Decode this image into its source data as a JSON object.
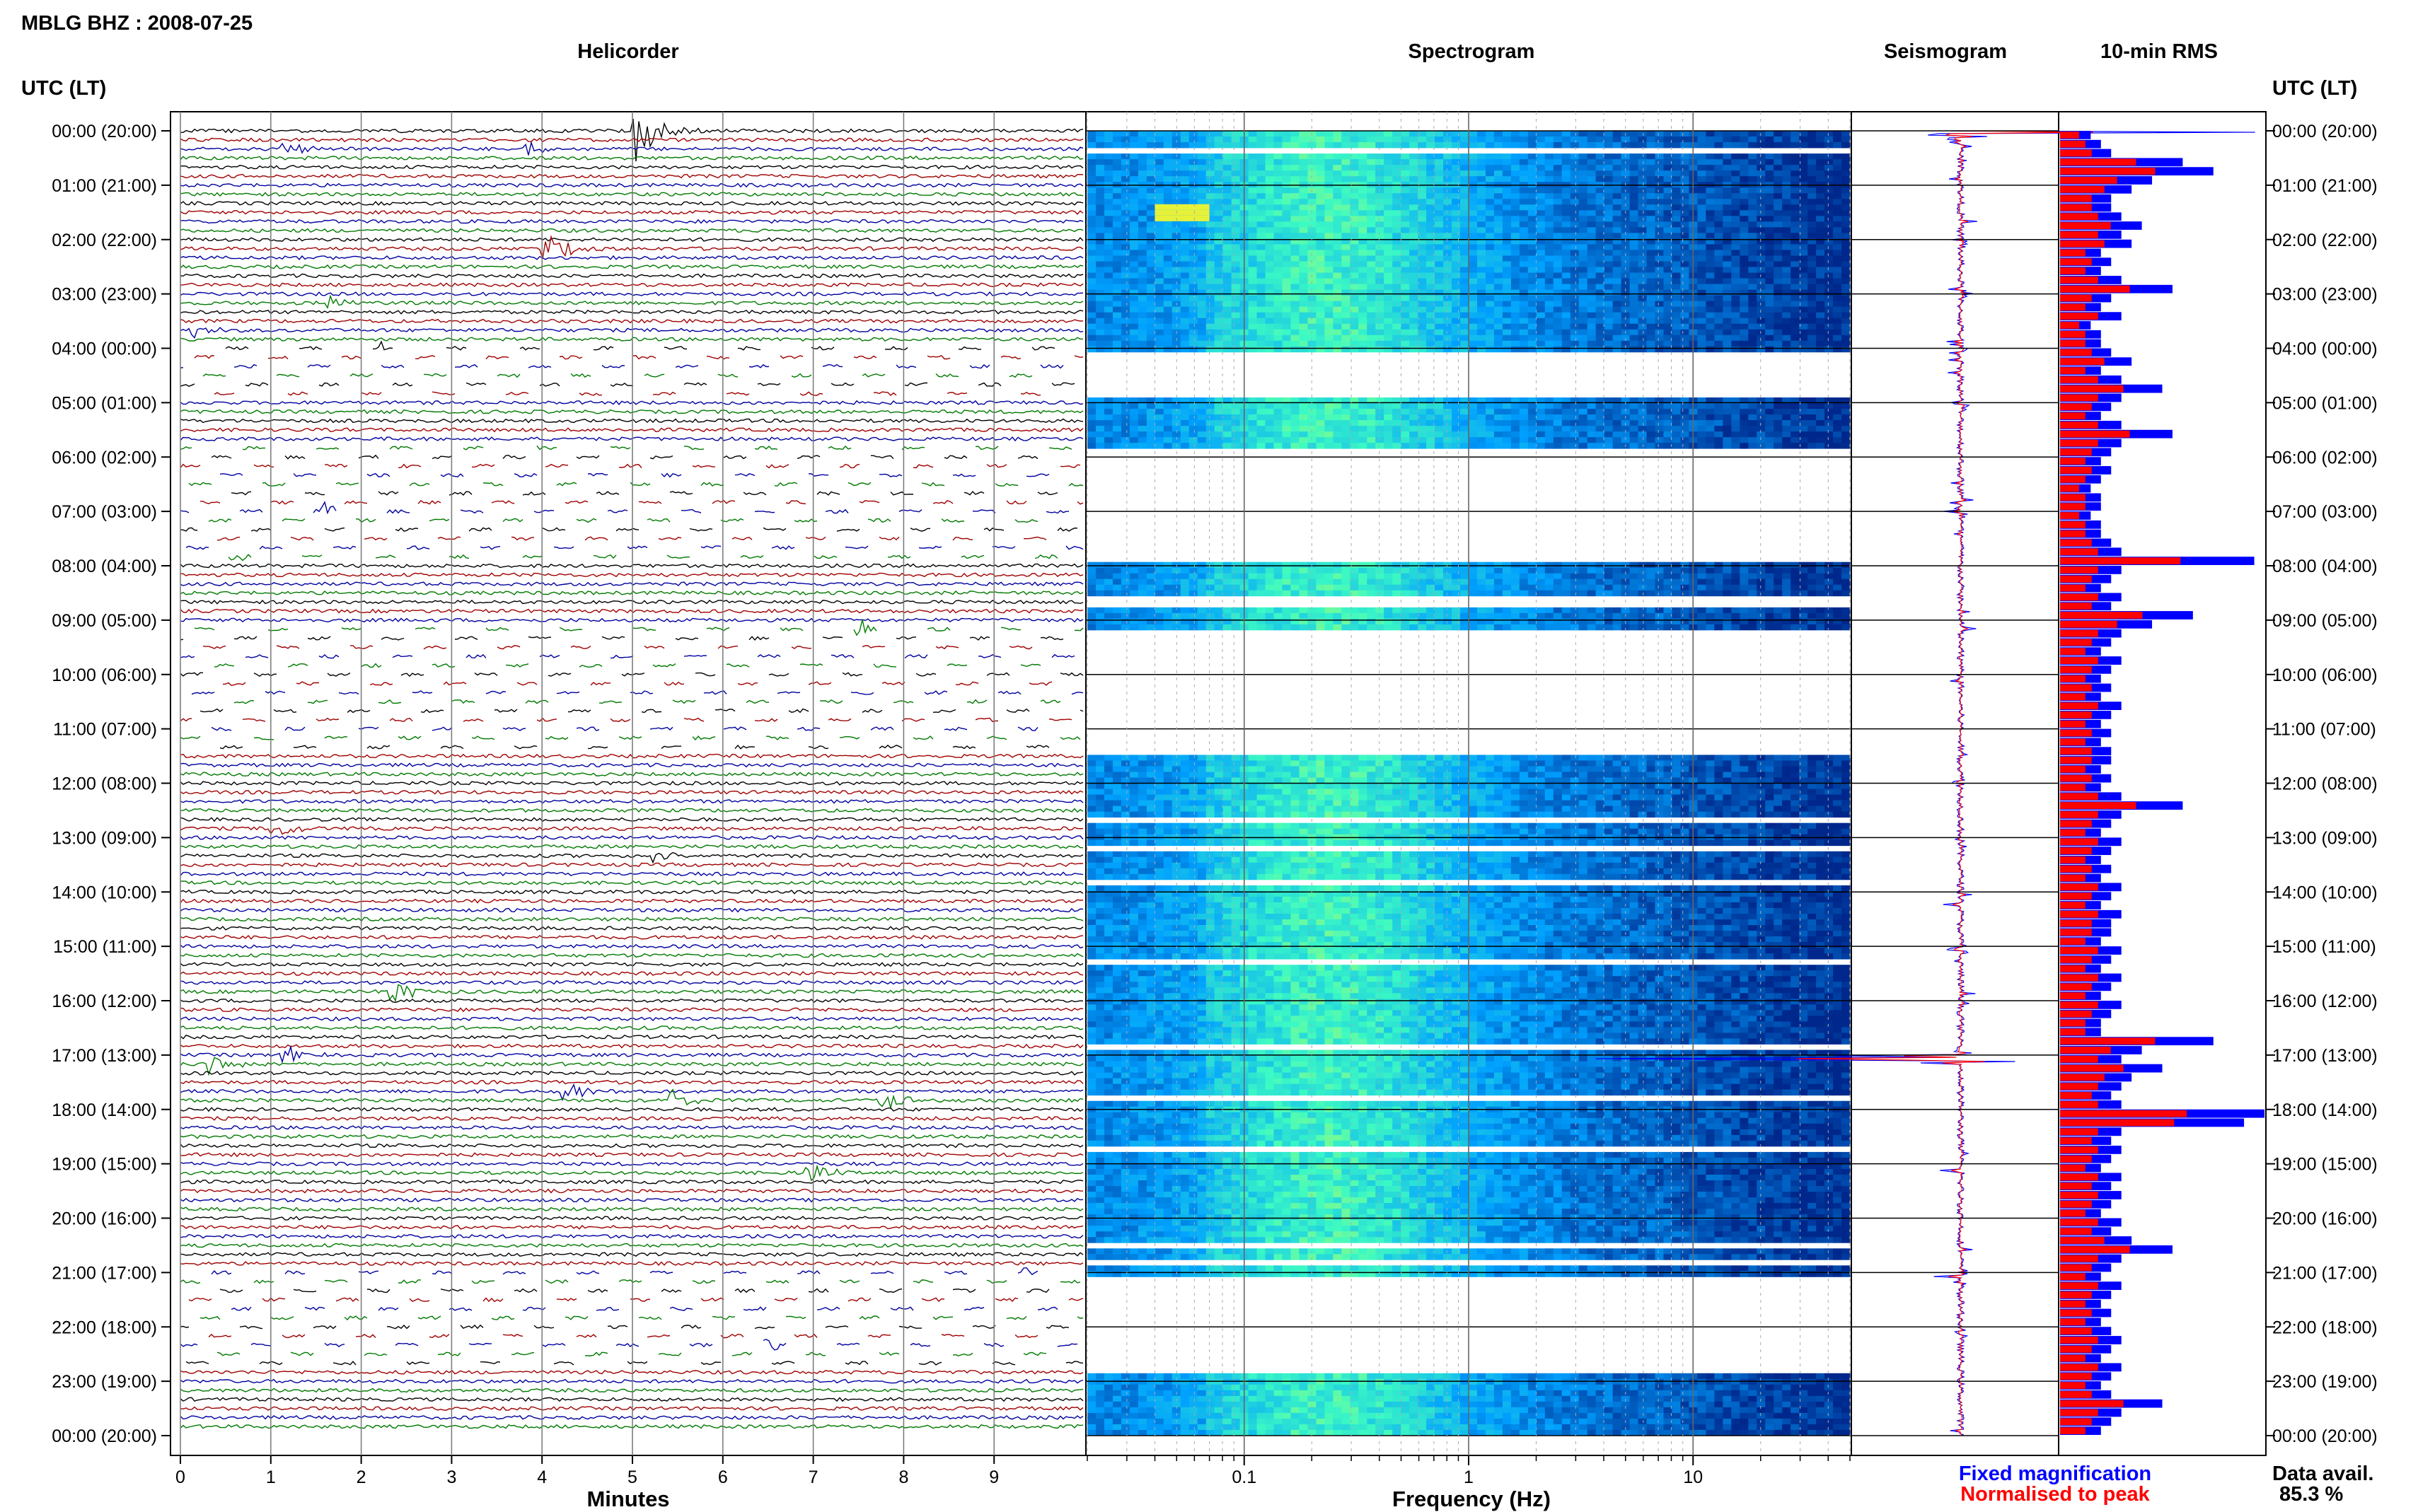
{
  "header": {
    "station": "MBLG BHZ : 2008-07-25"
  },
  "time_axis": {
    "header_label": "UTC (LT)",
    "labels": [
      "00:00 (20:00)",
      "01:00 (21:00)",
      "02:00 (22:00)",
      "03:00 (23:00)",
      "04:00 (00:00)",
      "05:00 (01:00)",
      "06:00 (02:00)",
      "07:00 (03:00)",
      "08:00 (04:00)",
      "09:00 (05:00)",
      "10:00 (06:00)",
      "11:00 (07:00)",
      "12:00 (08:00)",
      "13:00 (09:00)",
      "14:00 (10:00)",
      "15:00 (11:00)",
      "16:00 (12:00)",
      "17:00 (13:00)",
      "18:00 (14:00)",
      "19:00 (15:00)",
      "20:00 (16:00)",
      "21:00 (17:00)",
      "22:00 (18:00)",
      "23:00 (19:00)",
      "00:00 (20:00)"
    ]
  },
  "panels": {
    "helicorder": {
      "title": "Helicorder",
      "xlabel": "Minutes",
      "ticks": [
        "0",
        "1",
        "2",
        "3",
        "4",
        "5",
        "6",
        "7",
        "8",
        "9"
      ]
    },
    "spectrogram": {
      "title": "Spectrogram",
      "xlabel": "Frequency (Hz)",
      "ticks": [
        "0.1",
        "1",
        "10"
      ],
      "scale": "log"
    },
    "seismogram": {
      "title": "Seismogram"
    },
    "rms": {
      "title": "10-min RMS"
    }
  },
  "legend": {
    "fixed": {
      "label": "Fixed magnification",
      "color": "#0000ff"
    },
    "normalised": {
      "label": "Normalised to peak",
      "color": "#ff0000"
    }
  },
  "availability": {
    "label": "Data avail.",
    "value": "85.3 %"
  },
  "colors": {
    "black": "#000000",
    "red": "#a00000",
    "blue": "#0000a0",
    "green": "#007a00"
  },
  "chart_data": {
    "type": "heatmap",
    "description_values": {
      "helicorder_minutes_per_line": 10,
      "lines_per_hour": 6,
      "hours": 24
    },
    "events": [
      {
        "hour": 0,
        "minute": 5.0,
        "amp": 1.0
      },
      {
        "hour": 0,
        "minute": 1.1,
        "amp": 0.25
      },
      {
        "hour": 0,
        "minute": 3.8,
        "amp": 0.3
      },
      {
        "hour": 2,
        "minute": 4.0,
        "amp": 0.6
      },
      {
        "hour": 3,
        "minute": 0.1,
        "amp": 0.25
      },
      {
        "hour": 3,
        "minute": 1.6,
        "amp": 0.25
      },
      {
        "hour": 4,
        "minute": 2.2,
        "amp": 0.3
      },
      {
        "hour": 5,
        "minute": 3.5,
        "amp": 0.55
      },
      {
        "hour": 7,
        "minute": 0.3,
        "amp": 0.4
      },
      {
        "hour": 7,
        "minute": 1.5,
        "amp": 0.45
      },
      {
        "hour": 9,
        "minute": 7.3,
        "amp": 0.9
      },
      {
        "hour": 12,
        "minute": 1.0,
        "amp": 0.35
      },
      {
        "hour": 13,
        "minute": 5.2,
        "amp": 0.2
      },
      {
        "hour": 15,
        "minute": 2.3,
        "amp": 0.45
      },
      {
        "hour": 17,
        "minute": 0.3,
        "amp": 0.3
      },
      {
        "hour": 17,
        "minute": 1.1,
        "amp": 0.45
      },
      {
        "hour": 17,
        "minute": 4.2,
        "amp": 0.4
      },
      {
        "hour": 17,
        "minute": 5.4,
        "amp": 0.35
      },
      {
        "hour": 17,
        "minute": 7.7,
        "amp": 0.45
      },
      {
        "hour": 19,
        "minute": 6.9,
        "amp": 0.35
      },
      {
        "hour": 21,
        "minute": 1.5,
        "amp": 0.3
      },
      {
        "hour": 21,
        "minute": 9.3,
        "amp": 0.3
      },
      {
        "hour": 22,
        "minute": 6.4,
        "amp": 0.3
      }
    ],
    "data_gaps_hours": [
      [
        4.0,
        4.9
      ],
      [
        5.8,
        7.9
      ],
      [
        9.1,
        11.4
      ],
      [
        21.0,
        22.8
      ]
    ],
    "rms_fixed": [
      0.15,
      0.2,
      0.25,
      0.6,
      0.75,
      0.45,
      0.35,
      0.25,
      0.25,
      0.3,
      0.4,
      0.3,
      0.35,
      0.2,
      0.25,
      0.2,
      0.3,
      0.55,
      0.25,
      0.2,
      0.3,
      0.15,
      0.2,
      0.2,
      0.25,
      0.35,
      0.2,
      0.3,
      0.5,
      0.3,
      0.25,
      0.2,
      0.3,
      0.55,
      0.3,
      0.25,
      0.2,
      0.25,
      0.2,
      0.15,
      0.2,
      0.2,
      0.15,
      0.2,
      0.2,
      0.25,
      0.3,
      0.95,
      0.3,
      0.25,
      0.2,
      0.3,
      0.25,
      0.65,
      0.45,
      0.3,
      0.25,
      0.2,
      0.3,
      0.25,
      0.2,
      0.25,
      0.2,
      0.3,
      0.25,
      0.2,
      0.25,
      0.2,
      0.25,
      0.25,
      0.2,
      0.25,
      0.2,
      0.3,
      0.6,
      0.3,
      0.25,
      0.2,
      0.3,
      0.25,
      0.2,
      0.25,
      0.2,
      0.3,
      0.25,
      0.2,
      0.3,
      0.25,
      0.25,
      0.2,
      0.3,
      0.25,
      0.2,
      0.3,
      0.25,
      0.2,
      0.3,
      0.25,
      0.2,
      0.2,
      0.75,
      0.4,
      0.3,
      0.5,
      0.35,
      0.3,
      0.25,
      0.3,
      1.0,
      0.9,
      0.3,
      0.25,
      0.3,
      0.25,
      0.2,
      0.3,
      0.25,
      0.3,
      0.25,
      0.2,
      0.3,
      0.25,
      0.35,
      0.55,
      0.3,
      0.25,
      0.2,
      0.3,
      0.25,
      0.2,
      0.25,
      0.2,
      0.25,
      0.3,
      0.25,
      0.2,
      0.3,
      0.25,
      0.2,
      0.25,
      0.5,
      0.3,
      0.25,
      0.2
    ]
  }
}
